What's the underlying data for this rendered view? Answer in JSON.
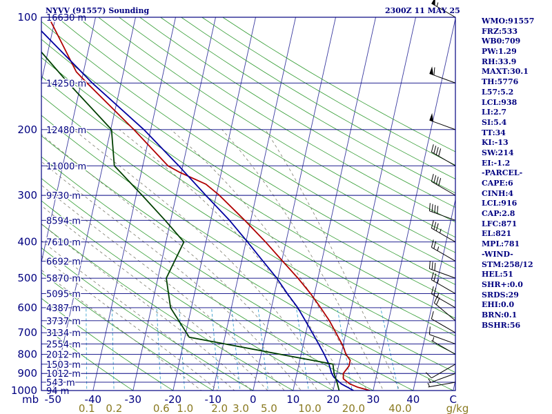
{
  "header": {
    "title": "NYVV (91557) Sounding",
    "datetime": "2300Z 11 MAY 25"
  },
  "indices": [
    "WMO:91557",
    "FRZ:533",
    "WB0:709",
    "PW:1.29",
    "RH:33.9",
    "MAXT:30.1",
    "TH:5776",
    "L57:5.2",
    "LCL:938",
    "LI:2.7",
    "SI:5.4",
    "TT:34",
    "KI:-13",
    "SW:214",
    "EI:-1.2",
    "-PARCEL-",
    "CAPE:6",
    "CINH:4",
    "LCL:916",
    "CAP:2.8",
    "LFC:871",
    "EL:821",
    "MPL:781",
    "-WIND-",
    "STM:258/12",
    "HEL:51",
    "SHR+:0.0",
    "SRDS:29",
    "EHI:0.0",
    "BRN:0.1",
    "BSHR:56"
  ],
  "colors": {
    "frame": "#000080",
    "isobar": "#000080",
    "isotherm": "#3a3aa0",
    "dry_adiabat": "#2e9a2e",
    "moist_adiabat": "#7a7a6a",
    "mixing_ratio": "#3aa0d0",
    "temperature": "#b00000",
    "parcel": "#0000a0",
    "dewpoint": "#004000",
    "axis_text": "#000080",
    "mixing_text": "#8a7a20",
    "wind": "#000000"
  },
  "chart_data": {
    "type": "skew-t",
    "title": "NYVV (91557) Sounding",
    "x_axis": {
      "label": "mb",
      "unit": "°C",
      "ticks": [
        -50,
        -40,
        -30,
        -20,
        -10,
        0,
        10,
        20,
        30,
        40,
        50
      ],
      "tick_labels": [
        "-50",
        "-40",
        "-30",
        "-20",
        "-10",
        "0",
        "10",
        "20",
        "30",
        "40",
        "C"
      ]
    },
    "y_axis": {
      "unit": "hPa",
      "scale": "log",
      "range": [
        1000,
        100
      ],
      "ticks": [
        100,
        200,
        300,
        400,
        500,
        600,
        700,
        800,
        900,
        1000
      ]
    },
    "mixing_ratio_labels": [
      "0.1",
      "0.2",
      "0.6",
      "1.0",
      "2.0",
      "3.0",
      "5.0",
      "10.0",
      "20.0",
      "40.0",
      "g/kg"
    ],
    "mixing_ratio_values": [
      0.1,
      0.2,
      0.6,
      1,
      2,
      3,
      5,
      10,
      20,
      40
    ],
    "heights": [
      {
        "p": 100,
        "label": "16630 m"
      },
      {
        "p": 150,
        "label": "14250 m"
      },
      {
        "p": 200,
        "label": "12480 m"
      },
      {
        "p": 250,
        "label": "11000 m"
      },
      {
        "p": 300,
        "label": "9730 m"
      },
      {
        "p": 350,
        "label": "8594 m"
      },
      {
        "p": 400,
        "label": "7610 m"
      },
      {
        "p": 450,
        "label": "6692 m"
      },
      {
        "p": 500,
        "label": "5870 m"
      },
      {
        "p": 550,
        "label": "5095 m"
      },
      {
        "p": 600,
        "label": "4387 m"
      },
      {
        "p": 650,
        "label": "3737 m"
      },
      {
        "p": 700,
        "label": "3134 m"
      },
      {
        "p": 750,
        "label": "2554 m"
      },
      {
        "p": 800,
        "label": "2012 m"
      },
      {
        "p": 850,
        "label": "1503 m"
      },
      {
        "p": 900,
        "label": "1012 m"
      },
      {
        "p": 950,
        "label": "543 m"
      },
      {
        "p": 1000,
        "label": "94 m"
      }
    ],
    "series": [
      {
        "key": "temperature",
        "points": [
          [
            1000,
            29.2
          ],
          [
            980,
            26
          ],
          [
            960,
            23.8
          ],
          [
            930,
            21.9
          ],
          [
            900,
            21.6
          ],
          [
            860,
            22.6
          ],
          [
            830,
            22.6
          ],
          [
            800,
            21.2
          ],
          [
            760,
            20
          ],
          [
            700,
            17.5
          ],
          [
            650,
            15.2
          ],
          [
            600,
            12.3
          ],
          [
            550,
            9
          ],
          [
            500,
            5
          ],
          [
            450,
            0.2
          ],
          [
            400,
            -5.1
          ],
          [
            350,
            -11.5
          ],
          [
            300,
            -19.2
          ],
          [
            280,
            -23.2
          ],
          [
            260,
            -30.5
          ],
          [
            250,
            -33.7
          ],
          [
            200,
            -44.2
          ],
          [
            150,
            -58.5
          ],
          [
            140,
            -61.8
          ],
          [
            100,
            -71.7
          ]
        ]
      },
      {
        "key": "parcel",
        "points": [
          [
            1000,
            25.1
          ],
          [
            960,
            21.7
          ],
          [
            920,
            19.4
          ],
          [
            900,
            18.7
          ],
          [
            850,
            17.5
          ],
          [
            800,
            15.8
          ],
          [
            750,
            13.8
          ],
          [
            700,
            11.6
          ],
          [
            650,
            9.2
          ],
          [
            600,
            6.6
          ],
          [
            550,
            3.2
          ],
          [
            500,
            -0.3
          ],
          [
            450,
            -4.7
          ],
          [
            400,
            -9.6
          ],
          [
            350,
            -15.3
          ],
          [
            300,
            -22.6
          ],
          [
            250,
            -31
          ],
          [
            200,
            -41.7
          ],
          [
            150,
            -57.2
          ],
          [
            100,
            -76.9
          ]
        ]
      },
      {
        "key": "dewpoint",
        "points": [
          [
            1000,
            21.5
          ],
          [
            950,
            20.5
          ],
          [
            900,
            19.3
          ],
          [
            850,
            18.5
          ],
          [
            720,
            -18.9
          ],
          [
            600,
            -25.2
          ],
          [
            500,
            -27.9
          ],
          [
            400,
            -25.5
          ],
          [
            350,
            -31.4
          ],
          [
            300,
            -38.5
          ],
          [
            250,
            -47.1
          ],
          [
            200,
            -49.8
          ],
          [
            150,
            -63.2
          ],
          [
            100,
            -81.1
          ]
        ]
      }
    ],
    "wind_barbs": [
      {
        "p": 950,
        "dir": 260,
        "kt": 5
      },
      {
        "p": 900,
        "dir": 250,
        "kt": 5
      },
      {
        "p": 850,
        "dir": 240,
        "kt": 10
      },
      {
        "p": 800,
        "dir": 300,
        "kt": 5
      },
      {
        "p": 750,
        "dir": 290,
        "kt": 10
      },
      {
        "p": 700,
        "dir": 300,
        "kt": 10
      },
      {
        "p": 650,
        "dir": 310,
        "kt": 20
      },
      {
        "p": 600,
        "dir": 300,
        "kt": 25
      },
      {
        "p": 550,
        "dir": 300,
        "kt": 25
      },
      {
        "p": 500,
        "dir": 290,
        "kt": 30
      },
      {
        "p": 450,
        "dir": 300,
        "kt": 25
      },
      {
        "p": 400,
        "dir": 300,
        "kt": 35
      },
      {
        "p": 350,
        "dir": 290,
        "kt": 40
      },
      {
        "p": 300,
        "dir": 300,
        "kt": 40
      },
      {
        "p": 250,
        "dir": 300,
        "kt": 40
      },
      {
        "p": 200,
        "dir": 290,
        "kt": 50
      },
      {
        "p": 150,
        "dir": 290,
        "kt": 60
      },
      {
        "p": 100,
        "dir": 300,
        "kt": 55
      }
    ]
  }
}
